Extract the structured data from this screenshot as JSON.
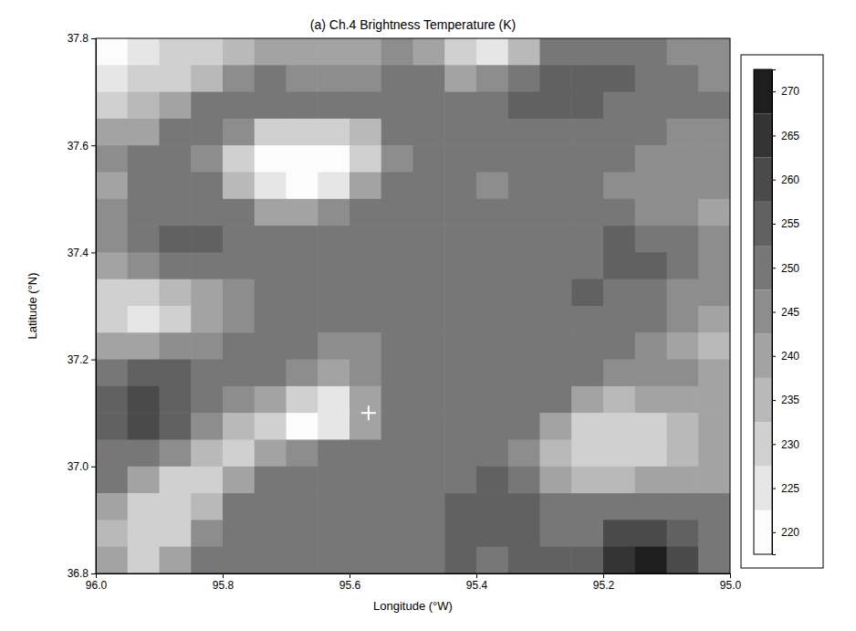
{
  "chart_data": {
    "type": "heatmap",
    "title": "(a) Ch.4 Brightness Temperature (K)",
    "x_label": "Longitude (°W)",
    "y_label": "Latitude (°N)",
    "xlim": [
      96,
      95
    ],
    "ylim": [
      36.8,
      37.8
    ],
    "xticks": [
      {
        "value": 96,
        "label": "96.0"
      },
      95.8,
      95.6,
      95.4,
      95.2,
      {
        "value": 95,
        "label": "95.0"
      }
    ],
    "yticks": [
      36.8,
      {
        "value": 37,
        "label": "37.0"
      },
      37.2,
      37.4,
      37.6,
      37.8
    ],
    "x": [
      95.975,
      95.925,
      95.875,
      95.825,
      95.775,
      95.725,
      95.675,
      95.625,
      95.575,
      95.525,
      95.475,
      95.425,
      95.375,
      95.325,
      95.275,
      95.225,
      95.175,
      95.125,
      95.075,
      95.025
    ],
    "y": [
      37.775,
      37.725,
      37.675,
      37.625,
      37.575,
      37.525,
      37.475,
      37.425,
      37.375,
      37.325,
      37.275,
      37.225,
      37.175,
      37.125,
      37.075,
      37.025,
      36.975,
      36.925,
      36.875,
      36.825
    ],
    "z": [
      [
        222,
        224,
        228,
        232,
        236,
        238,
        238,
        240,
        242,
        245,
        238,
        228,
        226,
        235,
        248,
        252,
        250,
        248,
        246,
        245
      ],
      [
        226,
        228,
        232,
        236,
        245,
        248,
        246,
        245,
        247,
        250,
        248,
        242,
        245,
        250,
        255,
        256,
        254,
        250,
        248,
        247
      ],
      [
        232,
        236,
        242,
        248,
        252,
        252,
        250,
        250,
        252,
        252,
        250,
        250,
        252,
        254,
        256,
        254,
        252,
        250,
        248,
        248
      ],
      [
        238,
        242,
        248,
        250,
        245,
        232,
        228,
        230,
        236,
        248,
        250,
        250,
        250,
        252,
        252,
        250,
        250,
        248,
        246,
        246
      ],
      [
        244,
        248,
        250,
        246,
        228,
        221,
        220,
        222,
        230,
        246,
        250,
        248,
        248,
        250,
        250,
        248,
        248,
        246,
        244,
        244
      ],
      [
        242,
        248,
        250,
        248,
        235,
        224,
        222,
        226,
        238,
        248,
        250,
        248,
        246,
        248,
        248,
        248,
        246,
        244,
        244,
        244
      ],
      [
        245,
        250,
        252,
        252,
        250,
        242,
        240,
        244,
        248,
        250,
        248,
        248,
        248,
        248,
        250,
        250,
        248,
        246,
        244,
        242
      ],
      [
        246,
        252,
        254,
        254,
        252,
        250,
        250,
        250,
        250,
        250,
        248,
        248,
        250,
        250,
        250,
        252,
        254,
        252,
        248,
        246
      ],
      [
        240,
        244,
        248,
        252,
        250,
        250,
        250,
        250,
        248,
        248,
        250,
        248,
        248,
        250,
        250,
        252,
        254,
        253,
        248,
        246
      ],
      [
        232,
        230,
        234,
        240,
        246,
        250,
        250,
        248,
        248,
        250,
        250,
        250,
        248,
        250,
        252,
        254,
        252,
        250,
        247,
        246
      ],
      [
        228,
        227,
        230,
        238,
        244,
        248,
        250,
        248,
        248,
        250,
        250,
        250,
        250,
        250,
        250,
        252,
        250,
        248,
        245,
        240
      ],
      [
        240,
        242,
        244,
        246,
        248,
        250,
        248,
        246,
        246,
        250,
        250,
        250,
        250,
        250,
        250,
        250,
        248,
        246,
        242,
        236
      ],
      [
        252,
        254,
        254,
        252,
        250,
        248,
        244,
        240,
        245,
        250,
        252,
        252,
        250,
        250,
        250,
        248,
        246,
        246,
        244,
        242
      ],
      [
        255,
        258,
        256,
        252,
        246,
        238,
        228,
        226,
        238,
        250,
        252,
        252,
        250,
        250,
        248,
        240,
        236,
        238,
        240,
        242
      ],
      [
        254,
        260,
        254,
        246,
        236,
        228,
        222,
        224,
        240,
        250,
        252,
        250,
        250,
        248,
        240,
        232,
        230,
        232,
        236,
        240
      ],
      [
        252,
        250,
        246,
        236,
        230,
        240,
        246,
        248,
        250,
        250,
        250,
        250,
        252,
        246,
        236,
        230,
        228,
        230,
        234,
        238
      ],
      [
        248,
        240,
        232,
        230,
        240,
        250,
        252,
        250,
        250,
        250,
        252,
        252,
        254,
        250,
        242,
        236,
        236,
        238,
        240,
        242
      ],
      [
        240,
        232,
        228,
        236,
        248,
        252,
        252,
        250,
        250,
        252,
        252,
        254,
        256,
        254,
        250,
        248,
        248,
        250,
        250,
        248
      ],
      [
        236,
        228,
        232,
        244,
        250,
        252,
        252,
        250,
        250,
        252,
        252,
        254,
        254,
        254,
        252,
        252,
        258,
        262,
        256,
        250
      ],
      [
        238,
        230,
        238,
        248,
        250,
        252,
        252,
        250,
        250,
        252,
        252,
        254,
        252,
        254,
        254,
        256,
        266,
        270,
        262,
        252
      ]
    ],
    "colorbar": {
      "range": [
        217.5,
        272.5
      ],
      "ticks": [
        220,
        225,
        230,
        235,
        240,
        245,
        250,
        255,
        260,
        265,
        270
      ]
    },
    "crosshair": {
      "x": 95.57,
      "y": 37.1,
      "marker": "plus"
    }
  }
}
